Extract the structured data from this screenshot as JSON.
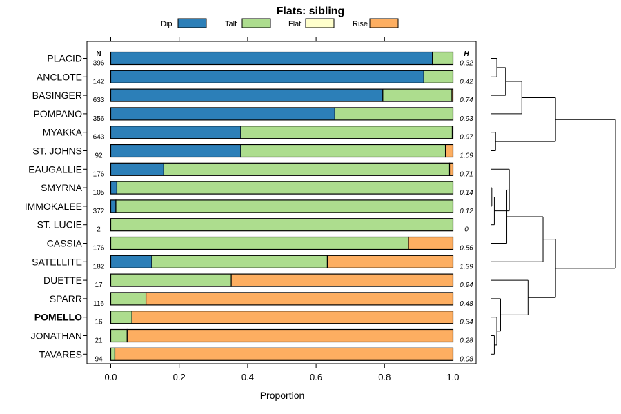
{
  "chart_data": {
    "type": "bar",
    "orientation": "horizontal",
    "stacked": true,
    "title": "Flats: sibling",
    "xlabel": "Proportion",
    "ylabel": "",
    "xlim": [
      0,
      1
    ],
    "x_ticks": [
      "0.0",
      "0.2",
      "0.4",
      "0.6",
      "0.8",
      "1.0"
    ],
    "n_header": "N",
    "h_header": "H",
    "legend": [
      {
        "name": "Dip",
        "color": "#2c7fb8"
      },
      {
        "name": "Talf",
        "color": "#addd8e"
      },
      {
        "name": "Flat",
        "color": "#ffffcc"
      },
      {
        "name": "Rise",
        "color": "#fdae61"
      }
    ],
    "categories": [
      "PLACID",
      "ANCLOTE",
      "BASINGER",
      "POMPANO",
      "MYAKKA",
      "ST. JOHNS",
      "EAUGALLIE",
      "SMYRNA",
      "IMMOKALEE",
      "ST. LUCIE",
      "CASSIA",
      "SATELLITE",
      "DUETTE",
      "SPARR",
      "POMELLO",
      "JONATHAN",
      "TAVARES"
    ],
    "bold_category": "POMELLO",
    "n": [
      "396",
      "142",
      "633",
      "356",
      "643",
      "92",
      "176",
      "105",
      "372",
      "2",
      "176",
      "182",
      "17",
      "116",
      "16",
      "21",
      "94"
    ],
    "h": [
      "0.32",
      "0.42",
      "0.74",
      "0.93",
      "0.97",
      "1.09",
      "0.71",
      "0.14",
      "0.12",
      "0",
      "0.56",
      "1.39",
      "0.94",
      "0.48",
      "0.34",
      "0.28",
      "0.08"
    ],
    "series": [
      {
        "name": "Dip",
        "values": [
          0.94,
          0.915,
          0.795,
          0.655,
          0.38,
          0.38,
          0.155,
          0.018,
          0.015,
          0,
          0,
          0.12,
          0,
          0,
          0,
          0,
          0
        ]
      },
      {
        "name": "Talf",
        "values": [
          0.06,
          0.085,
          0.202,
          0.345,
          0.618,
          0.598,
          0.835,
          0.982,
          0.985,
          1,
          0.87,
          0.513,
          0.352,
          0.103,
          0.062,
          0.048,
          0.012
        ]
      },
      {
        "name": "Flat",
        "values": [
          0,
          0,
          0,
          0,
          0,
          0,
          0,
          0,
          0,
          0,
          0,
          0,
          0,
          0,
          0,
          0,
          0
        ]
      },
      {
        "name": "Rise",
        "values": [
          0,
          0,
          0.003,
          0,
          0.002,
          0.022,
          0.01,
          0,
          0,
          0,
          0.13,
          0.367,
          0.648,
          0.897,
          0.938,
          0.952,
          0.988
        ]
      }
    ],
    "dendrogram": {
      "merges": [
        {
          "children": [
            "PLACID",
            "ANCLOTE"
          ],
          "height": 0.05
        },
        {
          "children": [
            "m0",
            "BASINGER"
          ],
          "height": 0.12
        },
        {
          "children": [
            "m1",
            "POMPANO"
          ],
          "height": 0.25
        },
        {
          "children": [
            "MYAKKA",
            "ST. JOHNS"
          ],
          "height": 0.04
        },
        {
          "children": [
            "m2",
            "m3"
          ],
          "height": 0.52
        },
        {
          "children": [
            "SMYRNA",
            "IMMOKALEE"
          ],
          "height": 0.01
        },
        {
          "children": [
            "m5",
            "ST. LUCIE"
          ],
          "height": 0.03
        },
        {
          "children": [
            "EAUGALLIE",
            "m6"
          ],
          "height": 0.15
        },
        {
          "children": [
            "m7",
            "CASSIA"
          ],
          "height": 0.13
        },
        {
          "children": [
            "m8",
            "SATELLITE"
          ],
          "height": 0.42
        },
        {
          "children": [
            "JONATHAN",
            "TAVARES"
          ],
          "height": 0.03
        },
        {
          "children": [
            "POMELLO",
            "m10"
          ],
          "height": 0.05
        },
        {
          "children": [
            "SPARR",
            "m11"
          ],
          "height": 0.08
        },
        {
          "children": [
            "DUETTE",
            "m12"
          ],
          "height": 0.3
        },
        {
          "children": [
            "m9",
            "m13"
          ],
          "height": 0.52
        },
        {
          "children": [
            "m4",
            "m14"
          ],
          "height": 1.0
        }
      ]
    }
  }
}
